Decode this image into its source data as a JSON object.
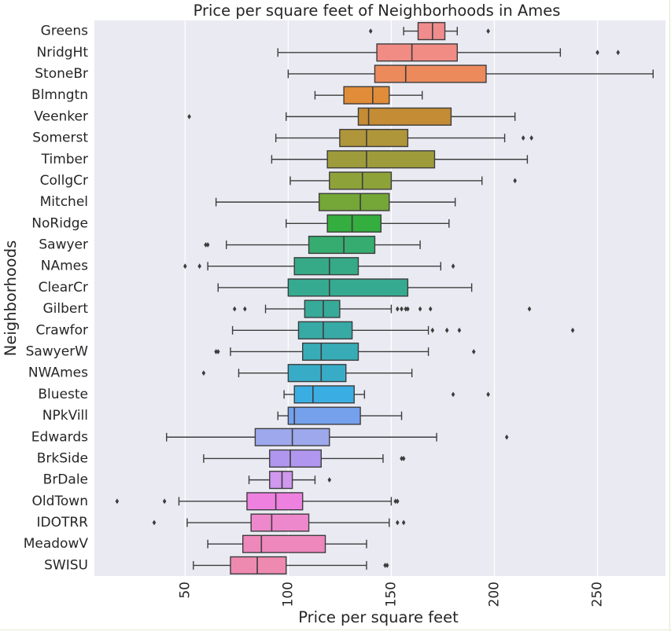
{
  "chart_data": {
    "type": "box",
    "orientation": "horizontal",
    "title": "Price per square feet of Neighborhoods in Ames",
    "xlabel": "Price per square feet",
    "ylabel": "Neighborhoods",
    "xlim": [
      6,
      283
    ],
    "x_ticks": [
      50,
      100,
      150,
      200,
      250
    ],
    "x_tick_labels": [
      "50",
      "100",
      "150",
      "200",
      "250"
    ],
    "grid": "vertical",
    "background": "#eaeaf2",
    "grid_color": "#ffffff",
    "outlier_color": "#3d3d3d",
    "box_edge_color": "#3d3d3d",
    "categories": [
      "Greens",
      "NridgHt",
      "StoneBr",
      "Blmngtn",
      "Veenker",
      "Somerst",
      "Timber",
      "CollgCr",
      "Mitchel",
      "NoRidge",
      "Sawyer",
      "NAmes",
      "ClearCr",
      "Gilbert",
      "Crawfor",
      "SawyerW",
      "NWAmes",
      "Blueste",
      "NPkVill",
      "Edwards",
      "BrkSide",
      "BrDale",
      "OldTown",
      "IDOTRR",
      "MeadowV",
      "SWISU"
    ],
    "colors": [
      "#f08c8c",
      "#f08c84",
      "#ec8a5c",
      "#e08c38",
      "#c48c34",
      "#b0963a",
      "#9e9c3a",
      "#8ea23a",
      "#74a638",
      "#34ae3e",
      "#36ac70",
      "#36aa86",
      "#36aa90",
      "#38aa9a",
      "#38aaa6",
      "#38acb6",
      "#38acc6",
      "#3aaee2",
      "#74a0ec",
      "#9ea8ec",
      "#b096ee",
      "#d098ee",
      "#ee80e0",
      "#ee88cc",
      "#ee88bc",
      "#ee8ab0"
    ],
    "boxes": [
      {
        "name": "Greens",
        "whisker_low": 156,
        "q1": 163,
        "median": 170,
        "q3": 176,
        "whisker_high": 182,
        "outliers": [
          140,
          197
        ]
      },
      {
        "name": "NridgHt",
        "whisker_low": 95,
        "q1": 143,
        "median": 160,
        "q3": 182,
        "whisker_high": 232,
        "outliers": [
          250,
          260
        ]
      },
      {
        "name": "StoneBr",
        "whisker_low": 100,
        "q1": 142,
        "median": 157,
        "q3": 196,
        "whisker_high": 277,
        "outliers": []
      },
      {
        "name": "Blmngtn",
        "whisker_low": 113,
        "q1": 127,
        "median": 141,
        "q3": 149,
        "whisker_high": 165,
        "outliers": []
      },
      {
        "name": "Veenker",
        "whisker_low": 99,
        "q1": 134,
        "median": 139,
        "q3": 179,
        "whisker_high": 210,
        "outliers": [
          52
        ]
      },
      {
        "name": "Somerst",
        "whisker_low": 94,
        "q1": 125,
        "median": 138,
        "q3": 158,
        "whisker_high": 205,
        "outliers": [
          214,
          218
        ]
      },
      {
        "name": "Timber",
        "whisker_low": 92,
        "q1": 119,
        "median": 138,
        "q3": 171,
        "whisker_high": 216,
        "outliers": []
      },
      {
        "name": "CollgCr",
        "whisker_low": 101,
        "q1": 120,
        "median": 136,
        "q3": 150,
        "whisker_high": 194,
        "outliers": [
          210
        ]
      },
      {
        "name": "Mitchel",
        "whisker_low": 65,
        "q1": 115,
        "median": 135,
        "q3": 149,
        "whisker_high": 181,
        "outliers": []
      },
      {
        "name": "NoRidge",
        "whisker_low": 99,
        "q1": 119,
        "median": 131,
        "q3": 145,
        "whisker_high": 178,
        "outliers": []
      },
      {
        "name": "Sawyer",
        "whisker_low": 70,
        "q1": 110,
        "median": 127,
        "q3": 142,
        "whisker_high": 164,
        "outliers": [
          60,
          61
        ]
      },
      {
        "name": "NAmes",
        "whisker_low": 61,
        "q1": 103,
        "median": 120,
        "q3": 134,
        "whisker_high": 174,
        "outliers": [
          50,
          57,
          180
        ]
      },
      {
        "name": "ClearCr",
        "whisker_low": 66,
        "q1": 100,
        "median": 120,
        "q3": 158,
        "whisker_high": 189,
        "outliers": []
      },
      {
        "name": "Gilbert",
        "whisker_low": 89,
        "q1": 108,
        "median": 117,
        "q3": 125,
        "whisker_high": 150,
        "outliers": [
          74,
          79,
          153,
          155,
          157,
          158,
          164,
          169,
          217
        ]
      },
      {
        "name": "Crawfor",
        "whisker_low": 73,
        "q1": 105,
        "median": 117,
        "q3": 131,
        "whisker_high": 168,
        "outliers": [
          170,
          177,
          183,
          238
        ]
      },
      {
        "name": "SawyerW",
        "whisker_low": 72,
        "q1": 107,
        "median": 116,
        "q3": 134,
        "whisker_high": 168,
        "outliers": [
          65,
          66,
          190
        ]
      },
      {
        "name": "NWAmes",
        "whisker_low": 76,
        "q1": 100,
        "median": 116,
        "q3": 128,
        "whisker_high": 160,
        "outliers": [
          59
        ]
      },
      {
        "name": "Blueste",
        "whisker_low": 98,
        "q1": 103,
        "median": 112,
        "q3": 132,
        "whisker_high": 137,
        "outliers": [
          180,
          197
        ]
      },
      {
        "name": "NPkVill",
        "whisker_low": 95,
        "q1": 100,
        "median": 103,
        "q3": 135,
        "whisker_high": 155,
        "outliers": []
      },
      {
        "name": "Edwards",
        "whisker_low": 41,
        "q1": 84,
        "median": 102,
        "q3": 120,
        "whisker_high": 172,
        "outliers": [
          206
        ]
      },
      {
        "name": "BrkSide",
        "whisker_low": 59,
        "q1": 91,
        "median": 101,
        "q3": 116,
        "whisker_high": 146,
        "outliers": [
          155,
          156
        ]
      },
      {
        "name": "BrDale",
        "whisker_low": 81,
        "q1": 91,
        "median": 97,
        "q3": 102,
        "whisker_high": 113,
        "outliers": [
          120
        ]
      },
      {
        "name": "OldTown",
        "whisker_low": 47,
        "q1": 80,
        "median": 94,
        "q3": 107,
        "whisker_high": 150,
        "outliers": [
          17,
          40,
          152,
          153
        ]
      },
      {
        "name": "IDOTRR",
        "whisker_low": 51,
        "q1": 82,
        "median": 92,
        "q3": 110,
        "whisker_high": 149,
        "outliers": [
          35,
          153,
          156
        ]
      },
      {
        "name": "MeadowV",
        "whisker_low": 61,
        "q1": 78,
        "median": 87,
        "q3": 118,
        "whisker_high": 138,
        "outliers": []
      },
      {
        "name": "SWISU",
        "whisker_low": 54,
        "q1": 72,
        "median": 85,
        "q3": 99,
        "whisker_high": 138,
        "outliers": [
          147,
          148
        ]
      }
    ]
  }
}
